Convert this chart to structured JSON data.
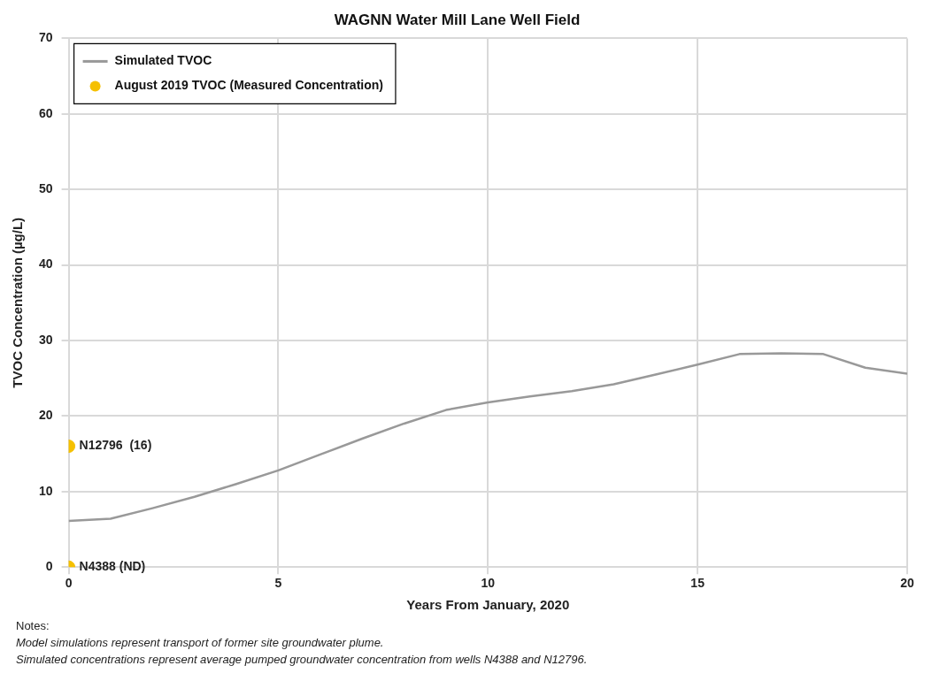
{
  "chart_data": {
    "type": "line",
    "title": "WAGNN Water Mill Lane Well Field",
    "xlabel": "Years From January, 2020",
    "ylabel": "TVOC Concentration (µg/L)",
    "xlim": [
      0,
      20
    ],
    "xticks": [
      0,
      5,
      10,
      15,
      20
    ],
    "ylim": [
      0,
      70
    ],
    "yticks": [
      0,
      10,
      20,
      30,
      40,
      50,
      60,
      70
    ],
    "grid": true,
    "legend": "top left",
    "series": [
      {
        "name": "Simulated TVOC",
        "type": "line",
        "color": "#999999",
        "marker": "none",
        "x": [
          0,
          1,
          2,
          3,
          4,
          5,
          6,
          7,
          8,
          9,
          10,
          11,
          12,
          13,
          14,
          15,
          16,
          17,
          18,
          19,
          20
        ],
        "values": [
          6.1,
          6.4,
          7.8,
          9.3,
          11.0,
          12.8,
          14.9,
          17.0,
          19.0,
          20.8,
          21.8,
          22.6,
          23.3,
          24.2,
          25.5,
          26.8,
          28.2,
          28.3,
          28.2,
          26.4,
          25.6
        ]
      },
      {
        "name": "August 2019 TVOC (Measured Concentration)",
        "type": "scatter",
        "color": "#f5c000",
        "marker": "circle",
        "x": [
          0,
          0
        ],
        "values": [
          16,
          0
        ],
        "value_labels": [
          "N12796  (16)",
          "N4388 (ND)"
        ]
      }
    ],
    "annotations": [
      "Notes:",
      "Model simulations represent transport of former site groundwater plume.",
      "Simulated concentrations represent average pumped groundwater concentration from wells N4388 and N12796."
    ]
  }
}
